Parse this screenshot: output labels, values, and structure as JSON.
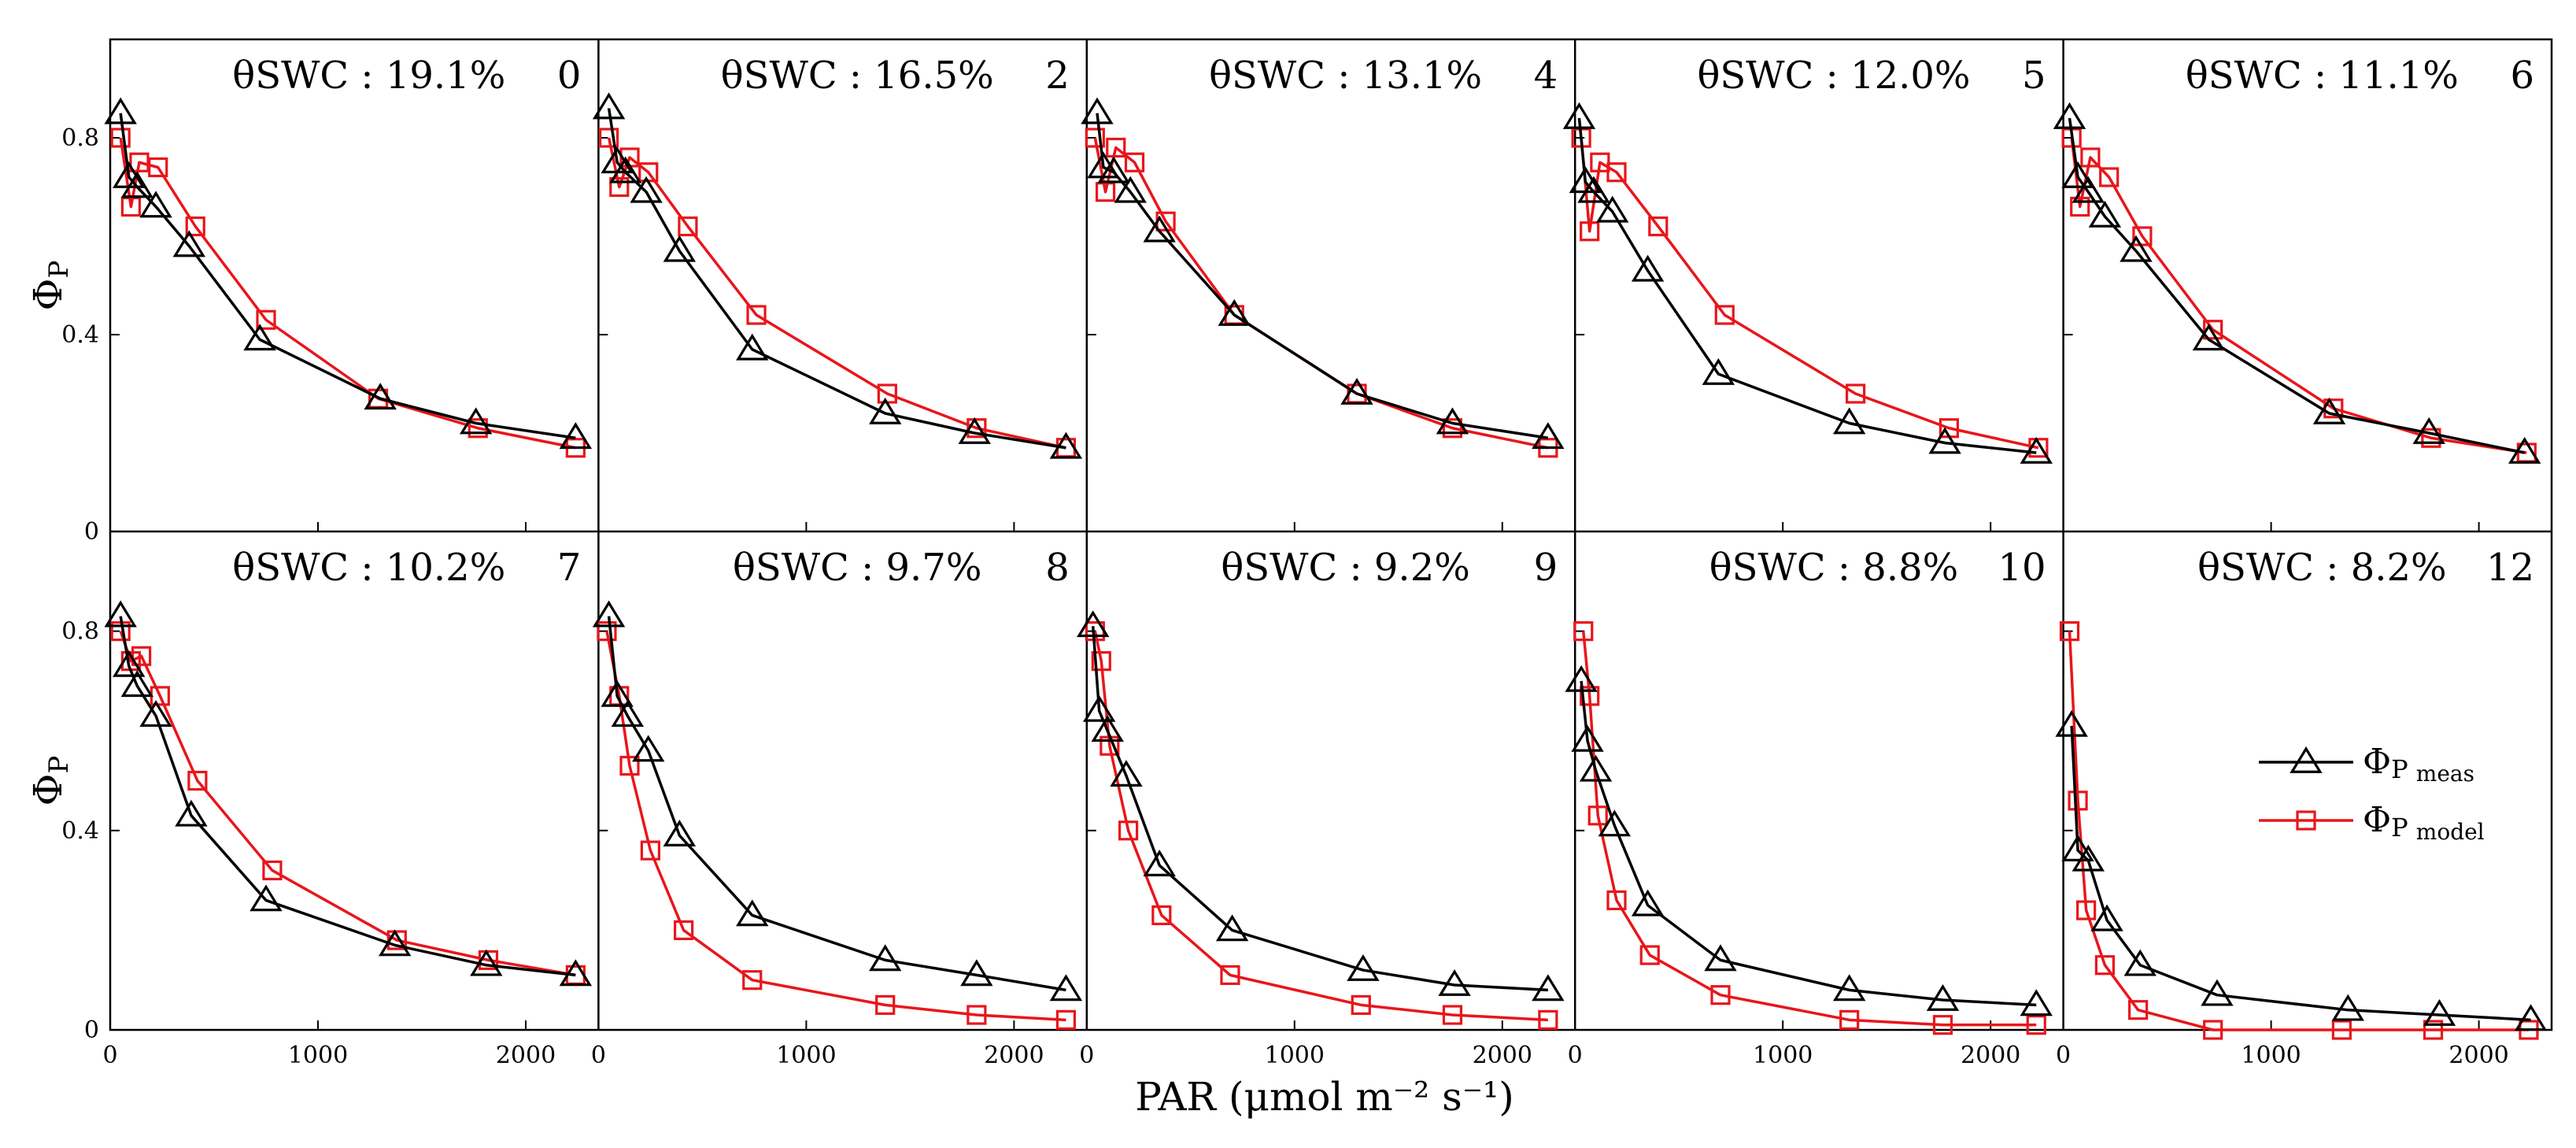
{
  "figure": {
    "xlabel": "PAR (μmol m⁻² s⁻¹)",
    "ylabel": "ΦP",
    "series_styles": [
      {
        "key": "meas",
        "color": "#000000",
        "marker": "triangle"
      },
      {
        "key": "model",
        "color": "#e8161b",
        "marker": "square"
      }
    ]
  },
  "chart_data": [
    {
      "type": "line",
      "title": "θSWC : 19.1%",
      "day": "0",
      "xlim": [
        0,
        2350
      ],
      "ylim": [
        0,
        1.0
      ],
      "xticks": [
        "0",
        "1000",
        "2000"
      ],
      "yticks": [
        "0",
        "0.4",
        "0.8"
      ],
      "series": [
        {
          "key": "meas",
          "x": [
            50,
            90,
            130,
            220,
            380,
            720,
            1300,
            1760,
            2240
          ],
          "y": [
            0.85,
            0.72,
            0.7,
            0.66,
            0.58,
            0.39,
            0.27,
            0.22,
            0.19
          ]
        },
        {
          "key": "model",
          "x": [
            50,
            100,
            140,
            230,
            410,
            750,
            1290,
            1770,
            2240
          ],
          "y": [
            0.8,
            0.66,
            0.75,
            0.74,
            0.62,
            0.43,
            0.27,
            0.21,
            0.17
          ]
        }
      ]
    },
    {
      "type": "line",
      "title": "θSWC : 16.5%",
      "day": "2",
      "xlim": [
        0,
        2350
      ],
      "ylim": [
        0,
        1.0
      ],
      "xticks": [
        "0",
        "1000",
        "2000"
      ],
      "yticks": [
        "0",
        "0.4",
        "0.8"
      ],
      "series": [
        {
          "key": "meas",
          "x": [
            50,
            90,
            130,
            230,
            390,
            740,
            1380,
            1810,
            2250
          ],
          "y": [
            0.86,
            0.75,
            0.73,
            0.69,
            0.57,
            0.37,
            0.24,
            0.2,
            0.17
          ]
        },
        {
          "key": "model",
          "x": [
            50,
            100,
            150,
            240,
            430,
            760,
            1390,
            1820,
            2250
          ],
          "y": [
            0.8,
            0.7,
            0.76,
            0.73,
            0.62,
            0.44,
            0.28,
            0.21,
            0.17
          ]
        }
      ]
    },
    {
      "type": "line",
      "title": "θSWC : 13.1%",
      "day": "4",
      "xlim": [
        0,
        2350
      ],
      "ylim": [
        0,
        1.0
      ],
      "xticks": [
        "0",
        "1000",
        "2000"
      ],
      "yticks": [
        "0",
        "0.4",
        "0.8"
      ],
      "series": [
        {
          "key": "meas",
          "x": [
            50,
            80,
            130,
            210,
            350,
            710,
            1300,
            1760,
            2220
          ],
          "y": [
            0.85,
            0.74,
            0.73,
            0.69,
            0.61,
            0.44,
            0.28,
            0.22,
            0.19
          ]
        },
        {
          "key": "model",
          "x": [
            40,
            90,
            140,
            230,
            380,
            710,
            1300,
            1760,
            2220
          ],
          "y": [
            0.8,
            0.69,
            0.78,
            0.75,
            0.63,
            0.44,
            0.28,
            0.21,
            0.17
          ]
        }
      ]
    },
    {
      "type": "line",
      "title": "θSWC : 12.0%",
      "day": "5",
      "xlim": [
        0,
        2350
      ],
      "ylim": [
        0,
        1.0
      ],
      "xticks": [
        "0",
        "1000",
        "2000"
      ],
      "yticks": [
        "0",
        "0.4",
        "0.8"
      ],
      "series": [
        {
          "key": "meas",
          "x": [
            20,
            50,
            90,
            180,
            350,
            690,
            1320,
            1780,
            2220
          ],
          "y": [
            0.84,
            0.71,
            0.69,
            0.65,
            0.53,
            0.32,
            0.22,
            0.18,
            0.16
          ]
        },
        {
          "key": "model",
          "x": [
            30,
            70,
            120,
            200,
            400,
            720,
            1350,
            1800,
            2230
          ],
          "y": [
            0.8,
            0.61,
            0.75,
            0.73,
            0.62,
            0.44,
            0.28,
            0.21,
            0.17
          ]
        }
      ]
    },
    {
      "type": "line",
      "title": "θSWC : 11.1%",
      "day": "6",
      "xlim": [
        0,
        2350
      ],
      "ylim": [
        0,
        1.0
      ],
      "xticks": [
        "0",
        "1000",
        "2000"
      ],
      "yticks": [
        "0",
        "0.4",
        "0.8"
      ],
      "series": [
        {
          "key": "meas",
          "x": [
            30,
            70,
            120,
            200,
            350,
            700,
            1280,
            1760,
            2220
          ],
          "y": [
            0.84,
            0.72,
            0.69,
            0.64,
            0.57,
            0.39,
            0.24,
            0.2,
            0.16
          ]
        },
        {
          "key": "model",
          "x": [
            40,
            80,
            130,
            220,
            380,
            720,
            1300,
            1770,
            2230
          ],
          "y": [
            0.8,
            0.66,
            0.76,
            0.72,
            0.6,
            0.41,
            0.25,
            0.19,
            0.16
          ]
        }
      ]
    },
    {
      "type": "line",
      "title": "θSWC : 10.2%",
      "day": "7",
      "xlim": [
        0,
        2350
      ],
      "ylim": [
        0,
        1.0
      ],
      "xticks": [
        "0",
        "1000",
        "2000"
      ],
      "yticks": [
        "0",
        "0.4",
        "0.8"
      ],
      "series": [
        {
          "key": "meas",
          "x": [
            50,
            90,
            130,
            220,
            390,
            750,
            1370,
            1810,
            2240
          ],
          "y": [
            0.83,
            0.73,
            0.69,
            0.63,
            0.43,
            0.26,
            0.17,
            0.13,
            0.11
          ]
        },
        {
          "key": "model",
          "x": [
            50,
            100,
            150,
            240,
            420,
            780,
            1380,
            1820,
            2240
          ],
          "y": [
            0.8,
            0.74,
            0.75,
            0.67,
            0.5,
            0.32,
            0.18,
            0.14,
            0.11
          ]
        }
      ]
    },
    {
      "type": "line",
      "title": "θSWC : 9.7%",
      "day": "8",
      "xlim": [
        0,
        2350
      ],
      "ylim": [
        0,
        1.0
      ],
      "xticks": [
        "0",
        "1000",
        "2000"
      ],
      "yticks": [
        "0",
        "0.4",
        "0.8"
      ],
      "series": [
        {
          "key": "meas",
          "x": [
            50,
            90,
            140,
            240,
            390,
            740,
            1380,
            1820,
            2250
          ],
          "y": [
            0.83,
            0.67,
            0.63,
            0.56,
            0.39,
            0.23,
            0.14,
            0.11,
            0.08
          ]
        },
        {
          "key": "model",
          "x": [
            40,
            100,
            150,
            250,
            410,
            740,
            1380,
            1820,
            2250
          ],
          "y": [
            0.8,
            0.67,
            0.53,
            0.36,
            0.2,
            0.1,
            0.05,
            0.03,
            0.02
          ]
        }
      ]
    },
    {
      "type": "line",
      "title": "θSWC : 9.2%",
      "day": "9",
      "xlim": [
        0,
        2350
      ],
      "ylim": [
        0,
        1.0
      ],
      "xticks": [
        "0",
        "1000",
        "2000"
      ],
      "yticks": [
        "0",
        "0.4",
        "0.8"
      ],
      "series": [
        {
          "key": "meas",
          "x": [
            30,
            60,
            100,
            190,
            350,
            700,
            1330,
            1770,
            2220
          ],
          "y": [
            0.81,
            0.64,
            0.6,
            0.51,
            0.33,
            0.2,
            0.12,
            0.09,
            0.08
          ]
        },
        {
          "key": "model",
          "x": [
            40,
            70,
            110,
            200,
            360,
            690,
            1320,
            1760,
            2220
          ],
          "y": [
            0.8,
            0.74,
            0.57,
            0.4,
            0.23,
            0.11,
            0.05,
            0.03,
            0.02
          ]
        }
      ]
    },
    {
      "type": "line",
      "title": "θSWC : 8.8%",
      "day": "10",
      "xlim": [
        0,
        2350
      ],
      "ylim": [
        0,
        1.0
      ],
      "xticks": [
        "0",
        "1000",
        "2000"
      ],
      "yticks": [
        "0",
        "0.4",
        "0.8"
      ],
      "series": [
        {
          "key": "meas",
          "x": [
            30,
            60,
            100,
            190,
            350,
            700,
            1320,
            1770,
            2220
          ],
          "y": [
            0.7,
            0.58,
            0.52,
            0.41,
            0.25,
            0.14,
            0.08,
            0.06,
            0.05
          ]
        },
        {
          "key": "model",
          "x": [
            40,
            70,
            110,
            200,
            360,
            700,
            1320,
            1770,
            2220
          ],
          "y": [
            0.8,
            0.67,
            0.43,
            0.26,
            0.15,
            0.07,
            0.02,
            0.01,
            0.01
          ]
        }
      ]
    },
    {
      "type": "line",
      "title": "θSWC : 8.2%",
      "day": "12",
      "xlim": [
        0,
        2350
      ],
      "ylim": [
        0,
        1.0
      ],
      "xticks": [
        "0",
        "1000",
        "2000"
      ],
      "yticks": [
        "0",
        "0.4",
        "0.8"
      ],
      "series": [
        {
          "key": "meas",
          "x": [
            40,
            70,
            120,
            210,
            370,
            740,
            1370,
            1810,
            2250
          ],
          "y": [
            0.61,
            0.36,
            0.34,
            0.22,
            0.13,
            0.07,
            0.04,
            0.03,
            0.02
          ]
        },
        {
          "key": "model",
          "x": [
            30,
            70,
            110,
            200,
            360,
            720,
            1340,
            1780,
            2240
          ],
          "y": [
            0.8,
            0.46,
            0.24,
            0.13,
            0.04,
            0.0,
            0.0,
            0.0,
            0.0
          ]
        }
      ]
    }
  ],
  "legend": {
    "position": "inside-right of last panel",
    "items": [
      {
        "key": "meas",
        "symbol": "Φ",
        "base": "P",
        "sub": "meas"
      },
      {
        "key": "model",
        "symbol": "Φ",
        "base": "P",
        "sub": "model"
      }
    ]
  }
}
